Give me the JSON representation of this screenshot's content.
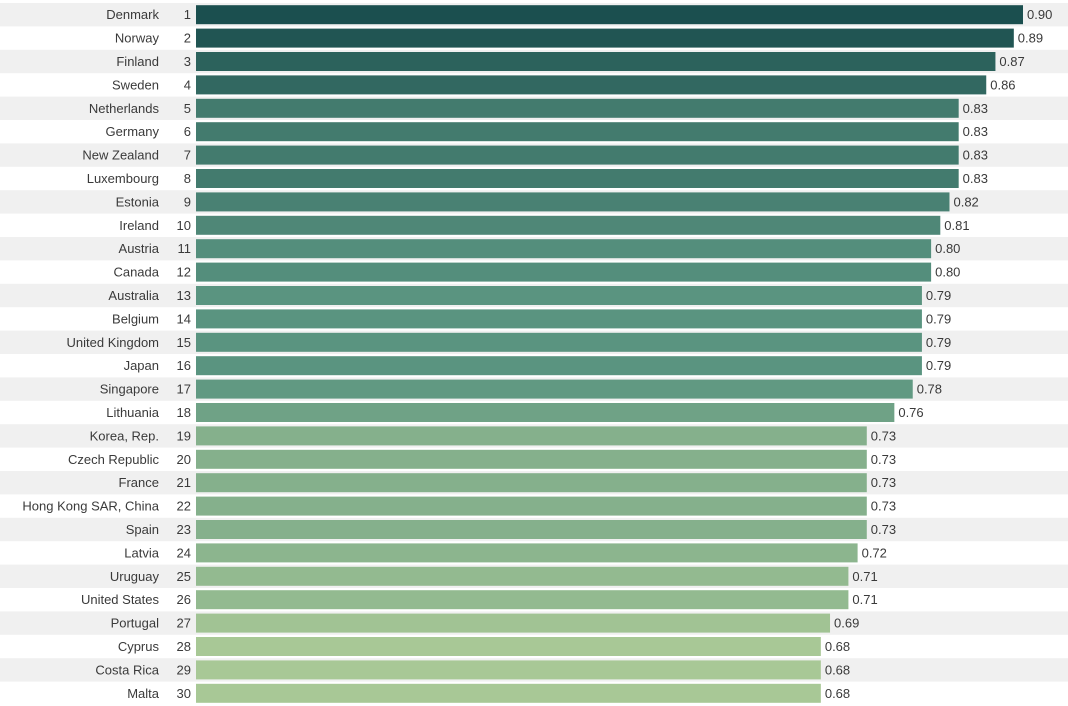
{
  "chart_data": {
    "type": "bar",
    "orientation": "horizontal",
    "title": "",
    "xlabel": "",
    "ylabel": "",
    "xlim": [
      0,
      0.9
    ],
    "grid": false,
    "legend": "none",
    "colors": {
      "high": "#1b4f4f",
      "mid": "#5a9480",
      "low": "#a8c896",
      "stripe": "#f0f0f0",
      "text": "#3a3a3a"
    },
    "rows": [
      {
        "rank": "1",
        "country": "Denmark",
        "value": 0.9,
        "label": "0.90"
      },
      {
        "rank": "2",
        "country": "Norway",
        "value": 0.89,
        "label": "0.89"
      },
      {
        "rank": "3",
        "country": "Finland",
        "value": 0.87,
        "label": "0.87"
      },
      {
        "rank": "4",
        "country": "Sweden",
        "value": 0.86,
        "label": "0.86"
      },
      {
        "rank": "5",
        "country": "Netherlands",
        "value": 0.83,
        "label": "0.83"
      },
      {
        "rank": "6",
        "country": "Germany",
        "value": 0.83,
        "label": "0.83"
      },
      {
        "rank": "7",
        "country": "New Zealand",
        "value": 0.83,
        "label": "0.83"
      },
      {
        "rank": "8",
        "country": "Luxembourg",
        "value": 0.83,
        "label": "0.83"
      },
      {
        "rank": "9",
        "country": "Estonia",
        "value": 0.82,
        "label": "0.82"
      },
      {
        "rank": "10",
        "country": "Ireland",
        "value": 0.81,
        "label": "0.81"
      },
      {
        "rank": "11",
        "country": "Austria",
        "value": 0.8,
        "label": "0.80"
      },
      {
        "rank": "12",
        "country": "Canada",
        "value": 0.8,
        "label": "0.80"
      },
      {
        "rank": "13",
        "country": "Australia",
        "value": 0.79,
        "label": "0.79"
      },
      {
        "rank": "14",
        "country": "Belgium",
        "value": 0.79,
        "label": "0.79"
      },
      {
        "rank": "15",
        "country": "United Kingdom",
        "value": 0.79,
        "label": "0.79"
      },
      {
        "rank": "16",
        "country": "Japan",
        "value": 0.79,
        "label": "0.79"
      },
      {
        "rank": "17",
        "country": "Singapore",
        "value": 0.78,
        "label": "0.78"
      },
      {
        "rank": "18",
        "country": "Lithuania",
        "value": 0.76,
        "label": "0.76"
      },
      {
        "rank": "19",
        "country": "Korea, Rep.",
        "value": 0.73,
        "label": "0.73"
      },
      {
        "rank": "20",
        "country": "Czech Republic",
        "value": 0.73,
        "label": "0.73"
      },
      {
        "rank": "21",
        "country": "France",
        "value": 0.73,
        "label": "0.73"
      },
      {
        "rank": "22",
        "country": "Hong Kong SAR, China",
        "value": 0.73,
        "label": "0.73"
      },
      {
        "rank": "23",
        "country": "Spain",
        "value": 0.73,
        "label": "0.73"
      },
      {
        "rank": "24",
        "country": "Latvia",
        "value": 0.72,
        "label": "0.72"
      },
      {
        "rank": "25",
        "country": "Uruguay",
        "value": 0.71,
        "label": "0.71"
      },
      {
        "rank": "26",
        "country": "United States",
        "value": 0.71,
        "label": "0.71"
      },
      {
        "rank": "27",
        "country": "Portugal",
        "value": 0.69,
        "label": "0.69"
      },
      {
        "rank": "28",
        "country": "Cyprus",
        "value": 0.68,
        "label": "0.68"
      },
      {
        "rank": "29",
        "country": "Costa Rica",
        "value": 0.68,
        "label": "0.68"
      },
      {
        "rank": "30",
        "country": "Malta",
        "value": 0.68,
        "label": "0.68"
      }
    ]
  }
}
